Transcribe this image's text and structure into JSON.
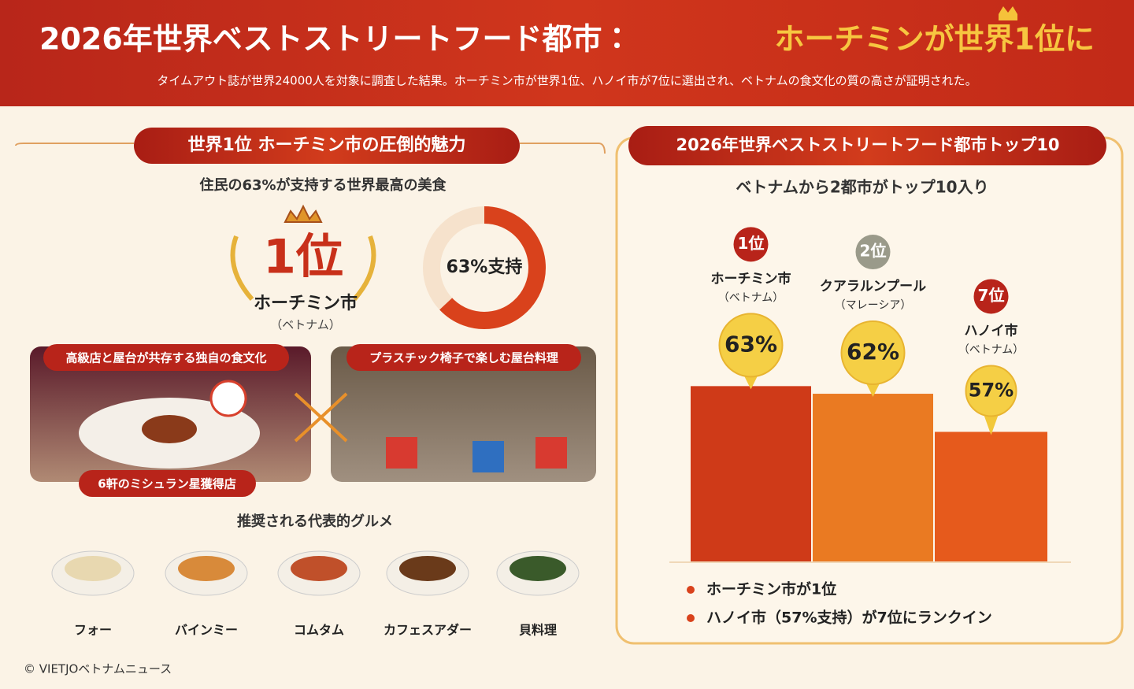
{
  "header": {
    "title_main": "2026年世界ベストストリートフード都市：",
    "title_highlight": "ホーチミンが世界1位に",
    "subtitle": "タイムアウト誌が世界24000人を対象に調査した結果。ホーチミン市が世界1位、ハノイ市が7位に選出され、ベトナムの食文化の質の高さが証明された。"
  },
  "left": {
    "badge": "世界1位 ホーチミン市の圧倒的魅力",
    "lead": "住民の63%が支持する世界最高の美食",
    "rank": "1位",
    "city": "ホーチミン市",
    "country": "（ベトナム）",
    "donut": {
      "value": 63,
      "label": "63%支持",
      "color": "#d9421c"
    },
    "photo_left": {
      "caption": "高級店と屋台が共存する独自の食文化",
      "footer": "6軒のミシュラン星獲得店"
    },
    "photo_right": {
      "caption": "プラスチック椅子で楽しむ屋台料理"
    },
    "foods_title": "推奨される代表的グルメ",
    "foods": [
      "フォー",
      "バインミー",
      "コムタム",
      "カフェスアダー",
      "貝料理"
    ]
  },
  "chart_data": {
    "type": "bar",
    "title": "2026年世界ベストストリートフード都市トップ10",
    "subtitle": "ベトナムから2都市がトップ10入り",
    "categories": [
      "ホーチミン市",
      "クアラルンプール",
      "ハノイ市"
    ],
    "countries": [
      "（ベトナム）",
      "（マレーシア）",
      "（ベトナム）"
    ],
    "ranks": [
      "1位",
      "2位",
      "7位"
    ],
    "values": [
      63,
      62,
      57
    ],
    "value_labels": [
      "63%",
      "62%",
      "57%"
    ],
    "colors": [
      "#cf3a18",
      "#ea7a22",
      "#e65a1c"
    ],
    "ylim": [
      40,
      65
    ],
    "notes": [
      "ホーチミン市が1位",
      "ハノイ市（57%支持）が7位にランクイン"
    ]
  },
  "footer": {
    "copyright": "© VIETJOベトナムニュース"
  }
}
